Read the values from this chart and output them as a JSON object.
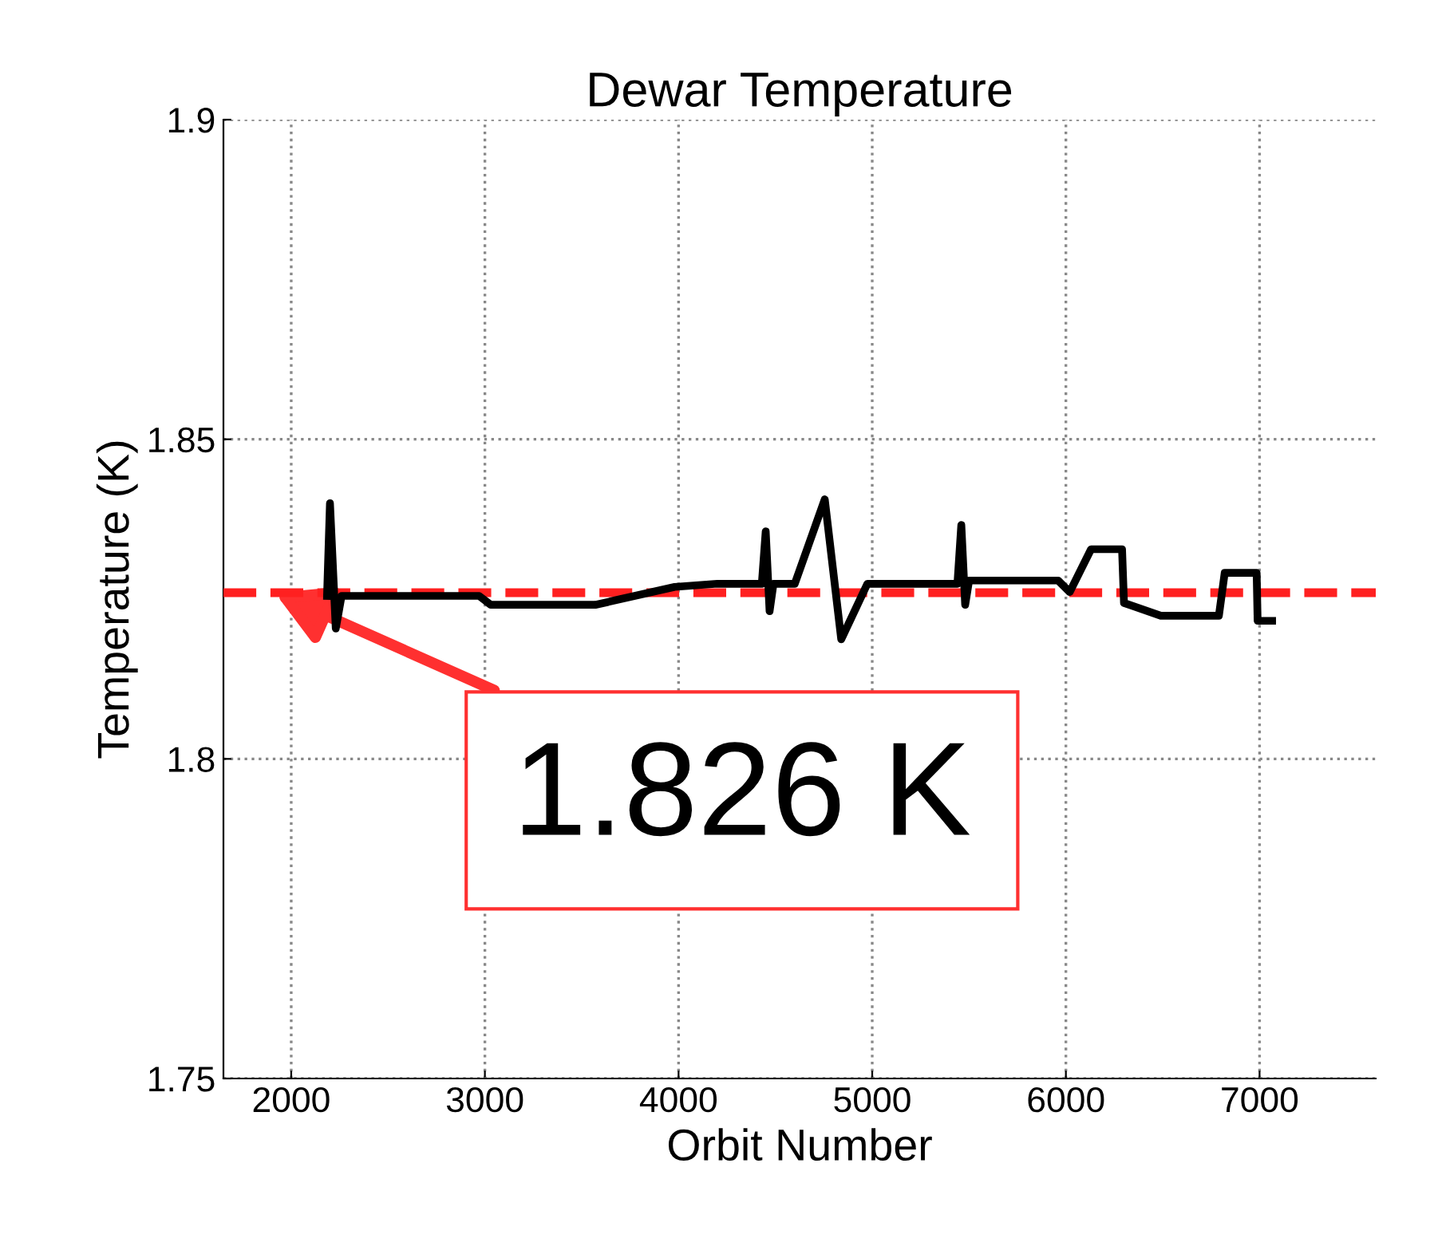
{
  "chart_data": {
    "type": "line",
    "title": "Dewar Temperature",
    "xlabel": "Orbit Number",
    "ylabel": "Temperature (K)",
    "series": [
      {
        "color": "#000000",
        "x": [
          2185,
          2200,
          2230,
          2260,
          2310,
          2970,
          3030,
          3570,
          3980,
          4200,
          4430,
          4450,
          4470,
          4490,
          4600,
          4755,
          4840,
          4975,
          5440,
          5460,
          5480,
          5500,
          5660,
          5960,
          6020,
          6130,
          6290,
          6300,
          6490,
          6790,
          6820,
          6985,
          6990,
          7065
        ],
        "values": [
          1.8255,
          1.84,
          1.8204,
          1.8255,
          1.8255,
          1.8255,
          1.8241,
          1.8241,
          1.8269,
          1.8274,
          1.8274,
          1.8356,
          1.8231,
          1.8274,
          1.8274,
          1.8406,
          1.8187,
          1.8274,
          1.8274,
          1.8366,
          1.8241,
          1.8279,
          1.8279,
          1.8279,
          1.8261,
          1.8328,
          1.8328,
          1.8244,
          1.8224,
          1.8224,
          1.8291,
          1.8291,
          1.8216,
          1.8216
        ]
      }
    ],
    "ref_lines": [
      {
        "axis": "y",
        "value": 1.826,
        "color": "#ff2020",
        "line_style": "dashed"
      }
    ],
    "annotations": [
      {
        "text": "1.826 K",
        "x": 1915,
        "y": 1.826
      }
    ],
    "xlim": [
      1650,
      7600
    ],
    "xticks": [
      2000,
      3000,
      4000,
      5000,
      6000,
      7000
    ],
    "ylim": [
      1.75,
      1.9
    ],
    "yticks": [
      1.75,
      1.8,
      1.85,
      1.9
    ],
    "grid": true,
    "line_style": "solid"
  }
}
